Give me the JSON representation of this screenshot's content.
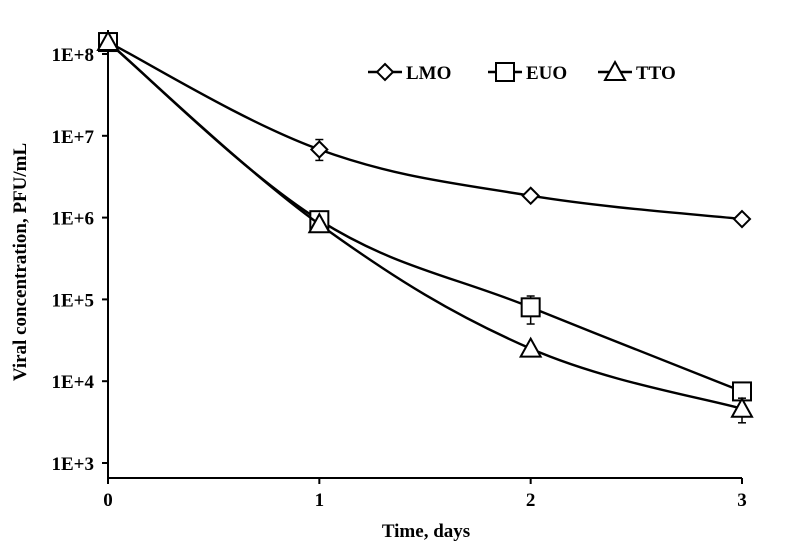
{
  "chart_data": {
    "type": "line",
    "title": "",
    "xlabel": "Time, days",
    "ylabel": "Viral concentration, PFU/mL",
    "y_scale": "log",
    "xlim": [
      0,
      3
    ],
    "ylim": [
      1000,
      200000000
    ],
    "x_ticks": [
      0,
      1,
      2,
      3
    ],
    "x_tick_labels": [
      "0",
      "1",
      "2",
      "3"
    ],
    "y_ticks": [
      1000,
      10000,
      100000,
      1000000,
      10000000,
      100000000
    ],
    "y_tick_labels": [
      "1E+3",
      "1E+4",
      "1E+5",
      "1E+6",
      "1E+7",
      "1E+8"
    ],
    "grid": false,
    "legend_position": "top-right",
    "x": [
      0,
      1,
      2,
      3
    ],
    "series": [
      {
        "name": "LMO",
        "marker": "diamond",
        "values": [
          140000000,
          6800000,
          1850000,
          960000
        ],
        "error": [
          [
            140000000,
            140000000
          ],
          [
            5000000,
            9000000
          ],
          [
            1750000,
            1950000
          ],
          [
            900000,
            1020000
          ]
        ]
      },
      {
        "name": "EUO",
        "marker": "square",
        "values": [
          140000000,
          930000,
          80000,
          7500
        ],
        "error": [
          [
            140000000,
            140000000
          ],
          [
            850000,
            1020000
          ],
          [
            50000,
            110000
          ],
          [
            6000,
            9500
          ]
        ]
      },
      {
        "name": "TTO",
        "marker": "triangle",
        "values": [
          140000000,
          830000,
          25000,
          4600
        ],
        "error": [
          [
            140000000,
            140000000
          ],
          [
            780000,
            880000
          ],
          [
            23000,
            27000
          ],
          [
            3100,
            6200
          ]
        ]
      }
    ]
  }
}
